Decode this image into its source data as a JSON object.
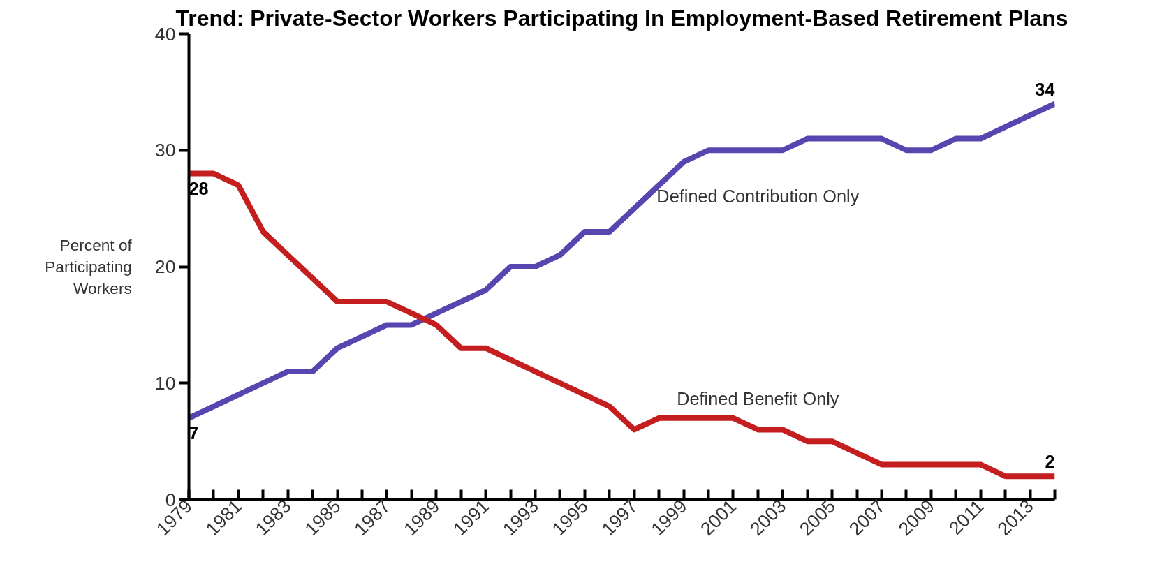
{
  "chart_data": {
    "type": "line",
    "title": "Trend: Private-Sector Workers Participating In Employment-Based Retirement Plans",
    "ylabel": "Percent of\nParticipating\nWorkers",
    "x": [
      1979,
      1980,
      1981,
      1982,
      1983,
      1984,
      1985,
      1986,
      1987,
      1988,
      1989,
      1990,
      1991,
      1992,
      1993,
      1994,
      1995,
      1996,
      1997,
      1998,
      1999,
      2000,
      2001,
      2002,
      2003,
      2004,
      2005,
      2006,
      2007,
      2008,
      2009,
      2010,
      2011,
      2012,
      2013,
      2014
    ],
    "series": [
      {
        "name": "Defined Contribution Only",
        "color": "#5546b0",
        "values": [
          7,
          8,
          9,
          10,
          11,
          11,
          13,
          14,
          15,
          15,
          16,
          17,
          18,
          20,
          20,
          21,
          23,
          23,
          25,
          27,
          29,
          30,
          30,
          30,
          30,
          31,
          31,
          31,
          31,
          30,
          30,
          31,
          31,
          32,
          33,
          34
        ],
        "value_labels": [
          "7",
          null,
          null,
          null,
          null,
          null,
          null,
          null,
          null,
          null,
          null,
          null,
          null,
          null,
          null,
          null,
          null,
          null,
          null,
          null,
          null,
          null,
          null,
          null,
          null,
          null,
          null,
          null,
          null,
          null,
          null,
          null,
          null,
          null,
          null,
          "34"
        ]
      },
      {
        "name": "Defined Benefit Only",
        "color": "#c41e1e",
        "values": [
          28,
          28,
          27,
          23,
          21,
          19,
          17,
          17,
          17,
          16,
          15,
          13,
          13,
          12,
          11,
          10,
          9,
          8,
          6,
          7,
          7,
          7,
          7,
          6,
          6,
          5,
          5,
          4,
          3,
          3,
          3,
          3,
          3,
          2,
          2,
          2
        ],
        "value_labels": [
          "28",
          null,
          null,
          null,
          null,
          null,
          null,
          null,
          null,
          null,
          null,
          null,
          null,
          null,
          null,
          null,
          null,
          null,
          null,
          null,
          null,
          null,
          null,
          null,
          null,
          null,
          null,
          null,
          null,
          null,
          null,
          null,
          null,
          null,
          null,
          "2"
        ]
      }
    ],
    "xlim": [
      1979,
      2014
    ],
    "ylim": [
      0,
      40
    ],
    "yticks": [
      0,
      10,
      20,
      30,
      40
    ],
    "xticks": [
      1979,
      {
        "value": 1980,
        "label": null
      },
      1981,
      {
        "value": 1982,
        "label": null
      },
      1983,
      {
        "value": 1984,
        "label": null
      },
      1985,
      {
        "value": 1986,
        "label": null
      },
      1987,
      {
        "value": 1988,
        "label": null
      },
      1989,
      {
        "value": 1990,
        "label": null
      },
      1991,
      {
        "value": 1992,
        "label": null
      },
      1993,
      {
        "value": 1994,
        "label": null
      },
      1995,
      {
        "value": 1996,
        "label": null
      },
      1997,
      {
        "value": 1998,
        "label": null
      },
      1999,
      {
        "value": 2000,
        "label": null
      },
      2001,
      {
        "value": 2002,
        "label": null
      },
      2003,
      {
        "value": 2004,
        "label": null
      },
      2005,
      {
        "value": 2006,
        "label": null
      },
      2007,
      {
        "value": 2008,
        "label": null
      },
      2009,
      {
        "value": 2010,
        "label": null
      },
      2011,
      {
        "value": 2012,
        "label": null
      },
      2013,
      {
        "value": 2014,
        "label": null
      }
    ],
    "grid": false,
    "legend": false,
    "marker": "none",
    "line_style": "solid"
  }
}
